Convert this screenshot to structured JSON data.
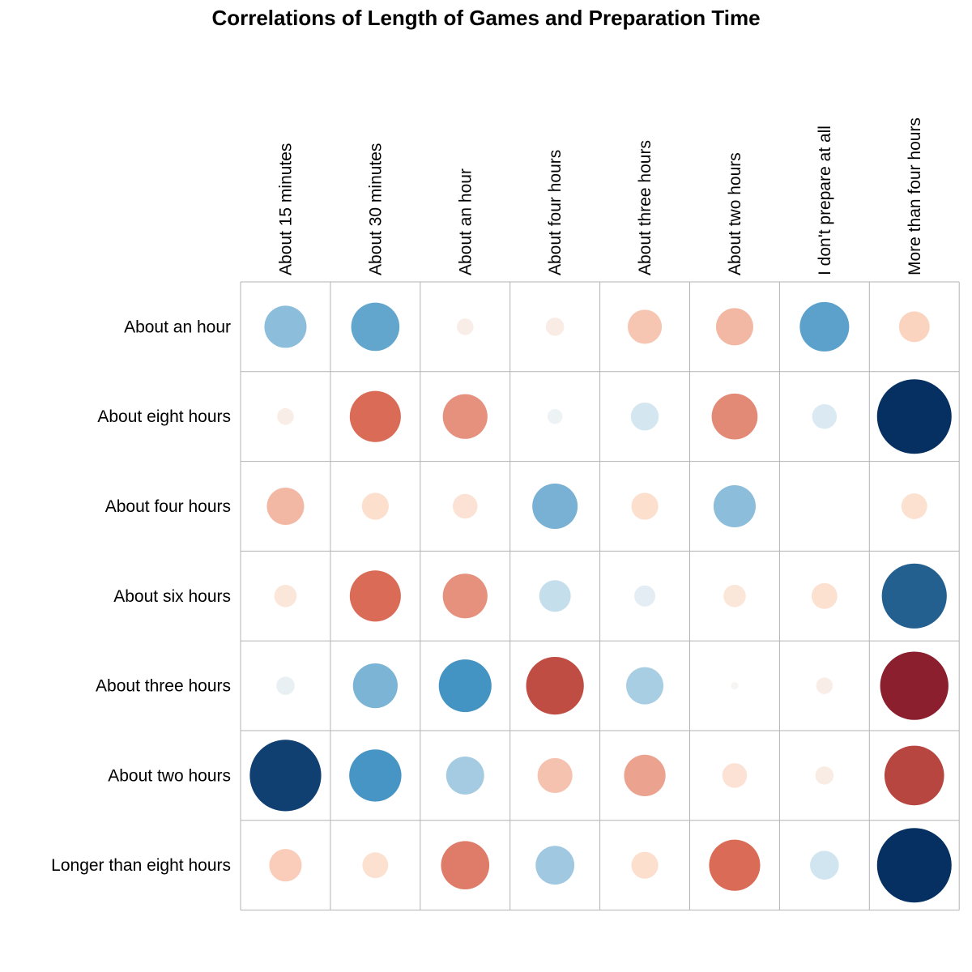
{
  "chart_data": {
    "type": "heatmap",
    "title": "Correlations of Length of Games and Preparation Time",
    "encoding": "circle size and color = correlation strength (red negative, blue positive)",
    "columns": [
      "About 15 minutes",
      "About 30 minutes",
      "About an hour",
      "About four hours",
      "About three hours",
      "About two hours",
      "I don't prepare at all",
      "More than four hours"
    ],
    "rows": [
      "About an hour",
      "About eight hours",
      "About four hours",
      "About six hours",
      "About three hours",
      "About two hours",
      "Longer than eight hours"
    ],
    "values": [
      [
        0.32,
        0.42,
        -0.05,
        -0.06,
        -0.21,
        -0.25,
        0.44,
        -0.17
      ],
      [
        -0.05,
        -0.47,
        -0.36,
        0.04,
        0.14,
        -0.38,
        0.11,
        1.0
      ],
      [
        -0.25,
        -0.13,
        -0.11,
        0.37,
        -0.13,
        0.32,
        0.0,
        -0.12
      ],
      [
        -0.09,
        -0.47,
        -0.36,
        0.18,
        0.08,
        -0.09,
        -0.12,
        0.76
      ],
      [
        0.06,
        0.36,
        0.5,
        -0.6,
        0.25,
        -0.01,
        -0.05,
        -0.84
      ],
      [
        0.92,
        0.49,
        0.26,
        -0.22,
        -0.31,
        -0.11,
        -0.06,
        -0.64
      ],
      [
        -0.19,
        -0.12,
        -0.42,
        0.27,
        -0.13,
        -0.47,
        0.15,
        1.0
      ]
    ],
    "color_scale": {
      "negative_strong": "#67001f",
      "negative_mid": "#d6604d",
      "negative_light": "#fddbc7",
      "neutral": "#f7f7f7",
      "positive_light": "#d1e5f0",
      "positive_mid": "#4393c3",
      "positive_strong": "#053061"
    },
    "grid": true,
    "legend": "none"
  }
}
